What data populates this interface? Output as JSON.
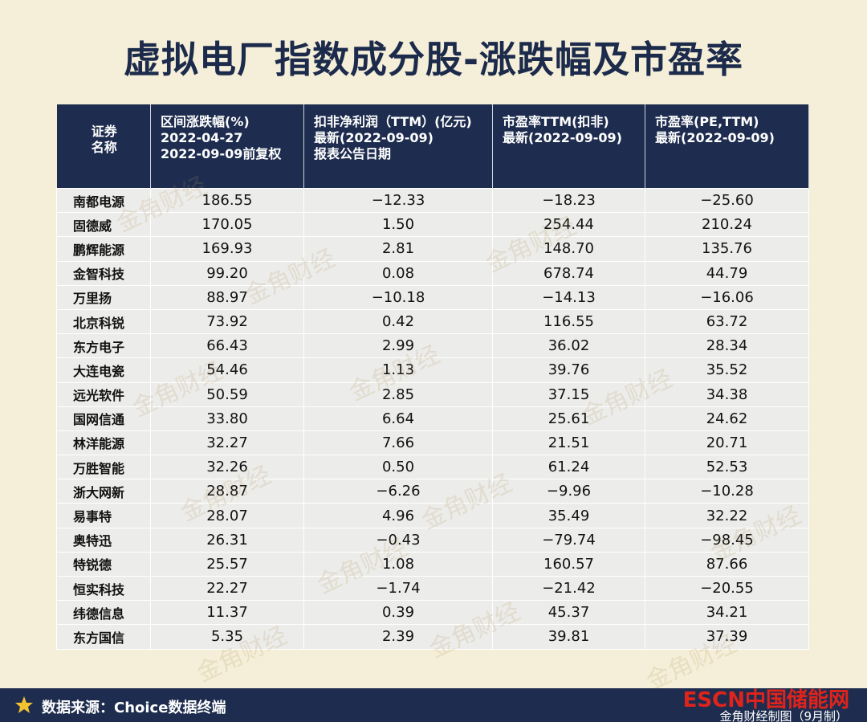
{
  "title": "虚拟电厂指数成分股-涨跌幅及市盈率",
  "table": {
    "header": [
      [
        "证券",
        "名称"
      ],
      [
        "区间涨跌幅(%)",
        "2022-04-27",
        "2022-09-09前复权"
      ],
      [
        "扣非净利润（TTM）(亿元)",
        "最新(2022-09-09)",
        "报表公告日期"
      ],
      [
        "市盈率TTM(扣非)",
        "最新(2022-09-09)"
      ],
      [
        "市盈率(PE,TTM)",
        "最新(2022-09-09)"
      ]
    ],
    "rows": [
      [
        "南都电源",
        "186.55",
        "−12.33",
        "−18.23",
        "−25.60"
      ],
      [
        "固德威",
        "170.05",
        "1.50",
        "254.44",
        "210.24"
      ],
      [
        "鹏辉能源",
        "169.93",
        "2.81",
        "148.70",
        "135.76"
      ],
      [
        "金智科技",
        "99.20",
        "0.08",
        "678.74",
        "44.79"
      ],
      [
        "万里扬",
        "88.97",
        "−10.18",
        "−14.13",
        "−16.06"
      ],
      [
        "北京科锐",
        "73.92",
        "0.42",
        "116.55",
        "63.72"
      ],
      [
        "东方电子",
        "66.43",
        "2.99",
        "36.02",
        "28.34"
      ],
      [
        "大连电瓷",
        "54.46",
        "1.13",
        "39.76",
        "35.52"
      ],
      [
        "远光软件",
        "50.59",
        "2.85",
        "37.15",
        "34.38"
      ],
      [
        "国网信通",
        "33.80",
        "6.64",
        "25.61",
        "24.62"
      ],
      [
        "林洋能源",
        "32.27",
        "7.66",
        "21.51",
        "20.71"
      ],
      [
        "万胜智能",
        "32.26",
        "0.50",
        "61.24",
        "52.53"
      ],
      [
        "浙大网新",
        "28.87",
        "−6.26",
        "−9.96",
        "−10.28"
      ],
      [
        "易事特",
        "28.07",
        "4.96",
        "35.49",
        "32.22"
      ],
      [
        "奥特迅",
        "26.31",
        "−0.43",
        "−79.74",
        "−98.45"
      ],
      [
        "特锐德",
        "25.57",
        "1.08",
        "160.57",
        "87.66"
      ],
      [
        "恒实科技",
        "22.27",
        "−1.74",
        "−21.42",
        "−20.55"
      ],
      [
        "纬德信息",
        "11.37",
        "0.39",
        "45.37",
        "34.21"
      ],
      [
        "东方国信",
        "5.35",
        "2.39",
        "39.81",
        "37.39"
      ]
    ]
  },
  "watermark": "金角财经",
  "footer": {
    "source": "数据来源：Choice数据终端",
    "logo": "ESCN中国储能网",
    "credit": "金角财经制图（9月制）"
  }
}
